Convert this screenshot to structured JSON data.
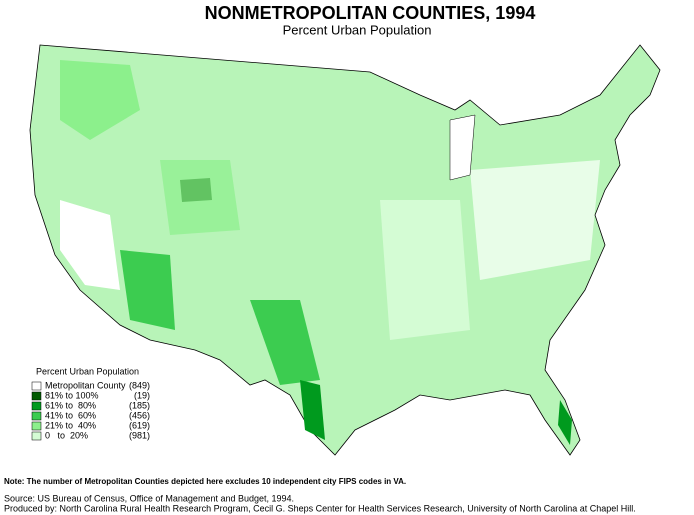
{
  "header": {
    "title": "NONMETROPOLITAN COUNTIES, 1994",
    "subtitle": "Percent Urban Population"
  },
  "legend": {
    "title": "Percent Urban Population",
    "items": [
      {
        "label": "Metropolitan County",
        "count": "(849)",
        "color": "#ffffff"
      },
      {
        "label": "81% to 100%",
        "count": "(19)",
        "color": "#005a00"
      },
      {
        "label": "61% to  80%",
        "count": "(185)",
        "color": "#009a1e"
      },
      {
        "label": "41% to  60%",
        "count": "(456)",
        "color": "#3ccc50"
      },
      {
        "label": "21% to  40%",
        "count": "(619)",
        "color": "#8cf08c"
      },
      {
        "label": "0   to  20%",
        "count": "(981)",
        "color": "#d4fcd4"
      }
    ]
  },
  "footer": {
    "note": "Note: The number of Metropolitan Counties depicted here excludes 10 independent city FIPS codes in VA.",
    "source": "Source: US Bureau of Census, Office of Management and Budget, 1994.",
    "produced": "Produced by: North Carolina Rural Health Research Program, Cecil G. Sheps Center for Health Services Research, University of North Carolina at Chapel Hill."
  }
}
